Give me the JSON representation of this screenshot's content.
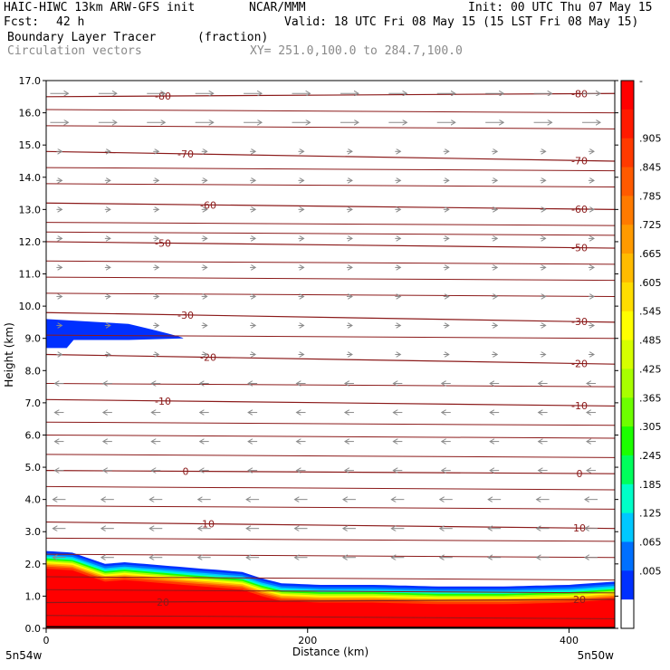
{
  "header": {
    "model": "HAIC-HIWC 13km ARW-GFS init",
    "org": "NCAR/MMM",
    "init": "Init: 00 UTC Thu 07 May 15",
    "fcst_label": "Fcst:",
    "fcst_value": "42 h",
    "valid": "Valid: 18 UTC Fri 08 May 15 (15 LST Fri 08 May 15)",
    "field_name": "Boundary Layer Tracer",
    "field_units": "(fraction)",
    "vector_name": "Circulation vectors",
    "xsec_label": "XY= 251.0,100.0 to 284.7,100.0"
  },
  "chart_data": {
    "type": "heatmap",
    "xlabel": "Distance (km)",
    "ylabel": "Height (km)",
    "xlim": [
      0,
      435
    ],
    "ylim": [
      0,
      17
    ],
    "x_ticks": [
      0,
      200,
      400
    ],
    "y_ticks": [
      "0.0",
      "1.0",
      "2.0",
      "3.0",
      "4.0",
      "5.0",
      "6.0",
      "7.0",
      "8.0",
      "9.0",
      "10.0",
      "11.0",
      "12.0",
      "13.0",
      "14.0",
      "15.0",
      "16.0",
      "17.0"
    ],
    "x_end_labels": {
      "left": "5n54w",
      "right": "5n50w"
    },
    "colorbar": {
      "labels": [
        "-",
        ".905",
        ".845",
        ".785",
        ".725",
        ".665",
        ".605",
        ".545",
        ".485",
        ".425",
        ".365",
        ".305",
        ".245",
        ".185",
        ".125",
        ".065",
        ".005"
      ],
      "colors": [
        "#ff0000",
        "#ff1a00",
        "#ff3a00",
        "#ff5a00",
        "#ff7a00",
        "#ff9a00",
        "#ffbb00",
        "#ffdd00",
        "#ffff00",
        "#d6ff00",
        "#a8ff00",
        "#6dff00",
        "#1cff00",
        "#00ff5c",
        "#00ffc8",
        "#00c8ff",
        "#0070ff",
        "#0030ff",
        "#ffffff"
      ]
    },
    "tracer_top_km": [
      [
        0,
        2.4
      ],
      [
        20,
        2.35
      ],
      [
        45,
        2.0
      ],
      [
        60,
        2.05
      ],
      [
        90,
        1.95
      ],
      [
        120,
        1.85
      ],
      [
        150,
        1.75
      ],
      [
        165,
        1.55
      ],
      [
        180,
        1.4
      ],
      [
        210,
        1.35
      ],
      [
        250,
        1.35
      ],
      [
        300,
        1.3
      ],
      [
        350,
        1.3
      ],
      [
        400,
        1.35
      ],
      [
        435,
        1.45
      ]
    ],
    "ground_km": [
      [
        0,
        0.05
      ],
      [
        435,
        0.02
      ]
    ],
    "cloud_patch": {
      "x_start": 0,
      "x_end": 105,
      "z_bottom": 8.7,
      "z_top": 9.6
    },
    "temperature_isotherms": [
      {
        "label": "-80",
        "z_left": 16.5,
        "z_right": 16.6
      },
      {
        "label": "-70",
        "z_left": 14.8,
        "z_right": 14.5
      },
      {
        "label": "-60",
        "z_left": 13.2,
        "z_right": 13.0
      },
      {
        "label": "-50",
        "z_left": 12.0,
        "z_right": 11.8
      },
      {
        "label": "-30",
        "z_left": 9.8,
        "z_right": 9.5
      },
      {
        "label": "-20",
        "z_left": 8.5,
        "z_right": 8.2
      },
      {
        "label": "-10",
        "z_left": 7.1,
        "z_right": 6.9
      },
      {
        "label": "0",
        "z_left": 4.9,
        "z_right": 4.8
      },
      {
        "label": "10",
        "z_left": 3.3,
        "z_right": 3.1
      },
      {
        "label": "20",
        "z_left": 0.8,
        "z_right": 0.9
      }
    ],
    "isotherm_labels_printed": [
      "-80",
      "-70",
      "-60",
      "-50",
      "-30",
      "-20",
      "-10",
      "0",
      "10",
      "20"
    ]
  }
}
